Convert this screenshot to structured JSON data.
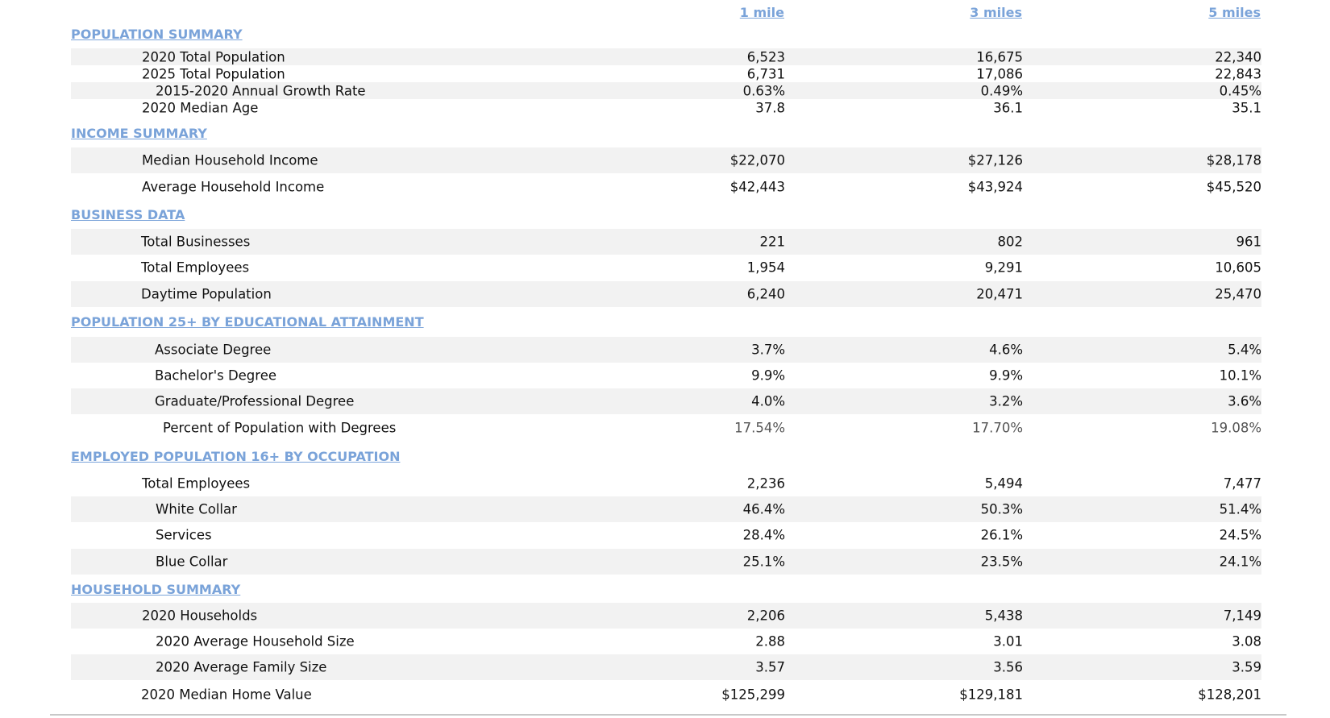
{
  "columns": [
    "1 mile",
    "3 miles",
    "5 miles"
  ],
  "sections": {
    "population": {
      "title": "POPULATION SUMMARY",
      "rows": [
        {
          "label": "2020 Total Population",
          "values": [
            "6,523",
            "16,675",
            "22,340"
          ]
        },
        {
          "label": "2025 Total Population",
          "values": [
            "6,731",
            "17,086",
            "22,843"
          ]
        },
        {
          "label": "2015-2020 Annual Growth Rate",
          "values": [
            "0.63%",
            "0.49%",
            "0.45%"
          ]
        },
        {
          "label": "2020 Median Age",
          "values": [
            "37.8",
            "36.1",
            "35.1"
          ]
        }
      ]
    },
    "income": {
      "title": "INCOME SUMMARY",
      "rows": [
        {
          "label": "Median Household Income",
          "values": [
            "$22,070",
            "$27,126",
            "$28,178"
          ]
        },
        {
          "label": "Average Household Income",
          "values": [
            "$42,443",
            "$43,924",
            "$45,520"
          ]
        }
      ]
    },
    "business": {
      "title": "BUSINESS DATA",
      "rows": [
        {
          "label": "Total Businesses",
          "values": [
            "221",
            "802",
            "961"
          ]
        },
        {
          "label": "Total Employees",
          "values": [
            "1,954",
            "9,291",
            "10,605"
          ]
        },
        {
          "label": "Daytime Population",
          "values": [
            "6,240",
            "20,471",
            "25,470"
          ]
        }
      ]
    },
    "education": {
      "title": "POPULATION 25+ BY EDUCATIONAL ATTAINMENT",
      "rows": [
        {
          "label": "Associate Degree",
          "values": [
            "3.7%",
            "4.6%",
            "5.4%"
          ]
        },
        {
          "label": "Bachelor's Degree",
          "values": [
            "9.9%",
            "9.9%",
            "10.1%"
          ]
        },
        {
          "label": "Graduate/Professional Degree",
          "values": [
            "4.0%",
            "3.2%",
            "3.6%"
          ]
        },
        {
          "label": "Percent of Population with Degrees",
          "values": [
            "17.54%",
            "17.70%",
            "19.08%"
          ]
        }
      ]
    },
    "occupation": {
      "title": "EMPLOYED POPULATION 16+ BY OCCUPATION",
      "rows": [
        {
          "label": "Total Employees",
          "values": [
            "2,236",
            "5,494",
            "7,477"
          ]
        },
        {
          "label": "White Collar",
          "values": [
            "46.4%",
            "50.3%",
            "51.4%"
          ]
        },
        {
          "label": "Services",
          "values": [
            "28.4%",
            "26.1%",
            "24.5%"
          ]
        },
        {
          "label": "Blue Collar",
          "values": [
            "25.1%",
            "23.5%",
            "24.1%"
          ]
        }
      ]
    },
    "household": {
      "title": "HOUSEHOLD SUMMARY",
      "rows": [
        {
          "label": "2020 Households",
          "values": [
            "2,206",
            "5,438",
            "7,149"
          ]
        },
        {
          "label": "2020 Average Household Size",
          "values": [
            "2.88",
            "3.01",
            "3.08"
          ]
        },
        {
          "label": "2020 Average Family Size",
          "values": [
            "3.57",
            "3.56",
            "3.59"
          ]
        },
        {
          "label": "2020 Median Home Value",
          "values": [
            "$125,299",
            "$129,181",
            "$128,201"
          ]
        }
      ]
    }
  }
}
